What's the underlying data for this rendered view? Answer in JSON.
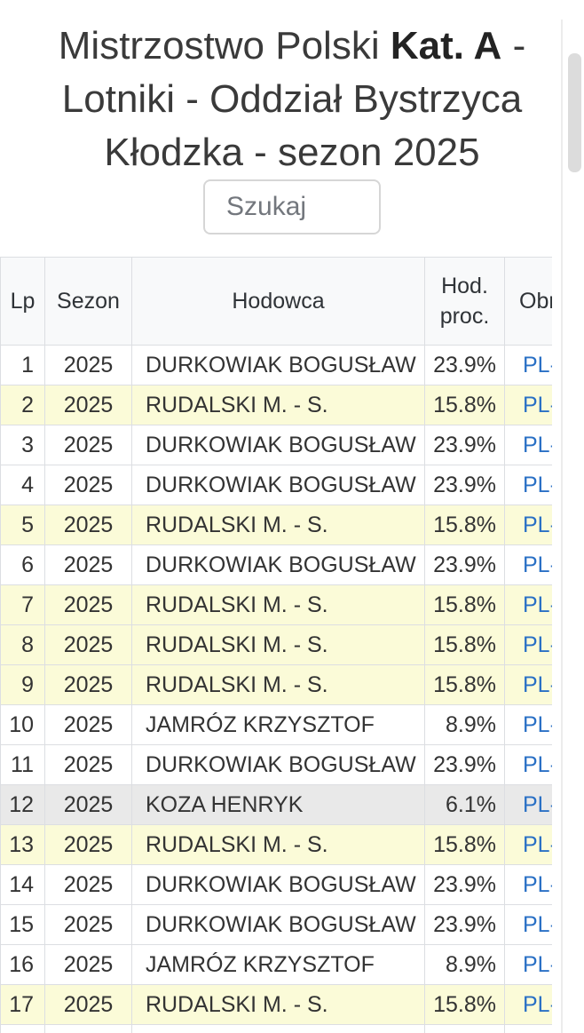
{
  "title": {
    "prefix": "Mistrzostwo Polski ",
    "bold": "Kat. A",
    "suffix": " - Lotniki - Oddział Bystrzyca Kłodzka - sezon 2025"
  },
  "search": {
    "placeholder": "Szukaj"
  },
  "table": {
    "columns": [
      {
        "key": "lp",
        "label": "Lp"
      },
      {
        "key": "sezon",
        "label": "Sezon"
      },
      {
        "key": "hodowca",
        "label": "Hodowca"
      },
      {
        "key": "proc",
        "label": "Hod. proc."
      },
      {
        "key": "obr",
        "label": "Obr"
      }
    ],
    "rows": [
      {
        "lp": "1",
        "sezon": "2025",
        "hodowca": "DURKOWIAK BOGUSŁAW",
        "proc": "23.9%",
        "obr": "PL-",
        "highlight": "none"
      },
      {
        "lp": "2",
        "sezon": "2025",
        "hodowca": "RUDALSKI M. - S.",
        "proc": "15.8%",
        "obr": "PL-",
        "highlight": "yellow"
      },
      {
        "lp": "3",
        "sezon": "2025",
        "hodowca": "DURKOWIAK BOGUSŁAW",
        "proc": "23.9%",
        "obr": "PL-",
        "highlight": "none"
      },
      {
        "lp": "4",
        "sezon": "2025",
        "hodowca": "DURKOWIAK BOGUSŁAW",
        "proc": "23.9%",
        "obr": "PL-",
        "highlight": "none"
      },
      {
        "lp": "5",
        "sezon": "2025",
        "hodowca": "RUDALSKI M. - S.",
        "proc": "15.8%",
        "obr": "PL-",
        "highlight": "yellow"
      },
      {
        "lp": "6",
        "sezon": "2025",
        "hodowca": "DURKOWIAK BOGUSŁAW",
        "proc": "23.9%",
        "obr": "PL-",
        "highlight": "none"
      },
      {
        "lp": "7",
        "sezon": "2025",
        "hodowca": "RUDALSKI M. - S.",
        "proc": "15.8%",
        "obr": "PL-",
        "highlight": "yellow"
      },
      {
        "lp": "8",
        "sezon": "2025",
        "hodowca": "RUDALSKI M. - S.",
        "proc": "15.8%",
        "obr": "PL-",
        "highlight": "yellow"
      },
      {
        "lp": "9",
        "sezon": "2025",
        "hodowca": "RUDALSKI M. - S.",
        "proc": "15.8%",
        "obr": "PL-",
        "highlight": "yellow"
      },
      {
        "lp": "10",
        "sezon": "2025",
        "hodowca": "JAMRÓZ KRZYSZTOF",
        "proc": "8.9%",
        "obr": "PL-",
        "highlight": "none"
      },
      {
        "lp": "11",
        "sezon": "2025",
        "hodowca": "DURKOWIAK BOGUSŁAW",
        "proc": "23.9%",
        "obr": "PL-",
        "highlight": "none"
      },
      {
        "lp": "12",
        "sezon": "2025",
        "hodowca": "KOZA HENRYK",
        "proc": "6.1%",
        "obr": "PL-",
        "highlight": "gray"
      },
      {
        "lp": "13",
        "sezon": "2025",
        "hodowca": "RUDALSKI M. - S.",
        "proc": "15.8%",
        "obr": "PL-",
        "highlight": "yellow"
      },
      {
        "lp": "14",
        "sezon": "2025",
        "hodowca": "DURKOWIAK BOGUSŁAW",
        "proc": "23.9%",
        "obr": "PL-",
        "highlight": "none"
      },
      {
        "lp": "15",
        "sezon": "2025",
        "hodowca": "DURKOWIAK BOGUSŁAW",
        "proc": "23.9%",
        "obr": "PL-",
        "highlight": "none"
      },
      {
        "lp": "16",
        "sezon": "2025",
        "hodowca": "JAMRÓZ KRZYSZTOF",
        "proc": "8.9%",
        "obr": "PL-",
        "highlight": "none"
      },
      {
        "lp": "17",
        "sezon": "2025",
        "hodowca": "RUDALSKI M. - S.",
        "proc": "15.8%",
        "obr": "PL-",
        "highlight": "yellow"
      }
    ]
  },
  "colors": {
    "row_highlights": {
      "yellow": "#fbfbd8",
      "gray": "#e9e9e9"
    },
    "link_blue": "#2a70c5",
    "header_bg": "#f8f9fa"
  }
}
